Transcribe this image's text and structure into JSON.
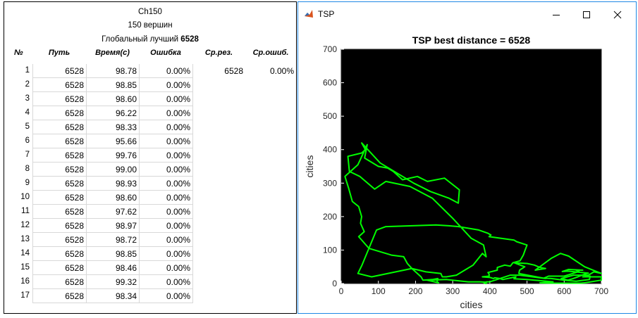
{
  "table_window": {
    "header_lines": [
      "Ch150",
      "150 вершин"
    ],
    "best_label": "Глобальный лучший",
    "best_value": "6528",
    "columns": [
      "№",
      "Путь",
      "Время(с)",
      "Ошибка",
      "Ср.рез.",
      "Ср.ошиб."
    ],
    "rows": [
      {
        "n": "1",
        "path": "6528",
        "time": "98.78",
        "err": "0.00%",
        "avg": "6528",
        "avgerr": "0.00%"
      },
      {
        "n": "2",
        "path": "6528",
        "time": "98.85",
        "err": "0.00%",
        "avg": "",
        "avgerr": ""
      },
      {
        "n": "3",
        "path": "6528",
        "time": "98.60",
        "err": "0.00%",
        "avg": "",
        "avgerr": ""
      },
      {
        "n": "4",
        "path": "6528",
        "time": "96.22",
        "err": "0.00%",
        "avg": "",
        "avgerr": ""
      },
      {
        "n": "5",
        "path": "6528",
        "time": "98.33",
        "err": "0.00%",
        "avg": "",
        "avgerr": ""
      },
      {
        "n": "6",
        "path": "6528",
        "time": "95.66",
        "err": "0.00%",
        "avg": "",
        "avgerr": ""
      },
      {
        "n": "7",
        "path": "6528",
        "time": "99.76",
        "err": "0.00%",
        "avg": "",
        "avgerr": ""
      },
      {
        "n": "8",
        "path": "6528",
        "time": "99.00",
        "err": "0.00%",
        "avg": "",
        "avgerr": ""
      },
      {
        "n": "9",
        "path": "6528",
        "time": "98.93",
        "err": "0.00%",
        "avg": "",
        "avgerr": ""
      },
      {
        "n": "10",
        "path": "6528",
        "time": "98.60",
        "err": "0.00%",
        "avg": "",
        "avgerr": ""
      },
      {
        "n": "11",
        "path": "6528",
        "time": "97.62",
        "err": "0.00%",
        "avg": "",
        "avgerr": ""
      },
      {
        "n": "12",
        "path": "6528",
        "time": "98.97",
        "err": "0.00%",
        "avg": "",
        "avgerr": ""
      },
      {
        "n": "13",
        "path": "6528",
        "time": "98.72",
        "err": "0.00%",
        "avg": "",
        "avgerr": ""
      },
      {
        "n": "14",
        "path": "6528",
        "time": "98.85",
        "err": "0.00%",
        "avg": "",
        "avgerr": ""
      },
      {
        "n": "15",
        "path": "6528",
        "time": "98.46",
        "err": "0.00%",
        "avg": "",
        "avgerr": ""
      },
      {
        "n": "16",
        "path": "6528",
        "time": "99.32",
        "err": "0.00%",
        "avg": "",
        "avgerr": ""
      },
      {
        "n": "17",
        "path": "6528",
        "time": "98.34",
        "err": "0.00%",
        "avg": "",
        "avgerr": ""
      }
    ]
  },
  "tsp_window": {
    "title": "TSP",
    "minimize_icon": "minimize-icon",
    "maximize_icon": "maximize-icon",
    "close_icon": "close-icon",
    "app_icon": "matlab-icon"
  },
  "chart_data": {
    "type": "line",
    "title": "TSP best distance = 6528",
    "xlabel": "cities",
    "ylabel": "cities",
    "xlim": [
      0,
      700
    ],
    "ylim": [
      0,
      700
    ],
    "xticks": [
      "0",
      "100",
      "200",
      "300",
      "400",
      "500",
      "600",
      "700"
    ],
    "yticks": [
      "0",
      "100",
      "200",
      "300",
      "400",
      "500",
      "600",
      "700"
    ],
    "grid": false,
    "background": "#000000",
    "line_color": "#00ff00",
    "series": [
      {
        "x": [
          56,
          45,
          82,
          190,
          228,
          268,
          272,
          283,
          310,
          355,
          380,
          390,
          383,
          350,
          300,
          245,
          185,
          120,
          90,
          50,
          22,
          18,
          55,
          65,
          55,
          105,
          195,
          240,
          290,
          315,
          318,
          278,
          232,
          205,
          165,
          140,
          125,
          100,
          63,
          70,
          45,
          10,
          20,
          30,
          47,
          55,
          52,
          62,
          47,
          75,
          135,
          168,
          178,
          190,
          215,
          220,
          245,
          260,
          258,
          262,
          231,
          283,
          342,
          374,
          390,
          384,
          390,
          390,
          400,
          455,
          480,
          550,
          525,
          478,
          480,
          494,
          465,
          500,
          520,
          535,
          550,
          522,
          565,
          590,
          612,
          655,
          700,
          680,
          665,
          625,
          592,
          610,
          622,
          637,
          660,
          665,
          610,
          595,
          612,
          650,
          632,
          640,
          600,
          558,
          545,
          565,
          600,
          632,
          668,
          670,
          650,
          700,
          700,
          655,
          645,
          642,
          620,
          578,
          535,
          545,
          570,
          520,
          500,
          465,
          470,
          435,
          427,
          413,
          410,
          401,
          380,
          398,
          398,
          395,
          420,
          420,
          440,
          455,
          462,
          481,
          490,
          495,
          500,
          472,
          465,
          398,
          403,
          395,
          370,
          316,
          285,
          255,
          120,
          95
        ],
        "y": [
          55,
          30,
          20,
          45,
          35,
          30,
          20,
          20,
          25,
          55,
          90,
          80,
          115,
          135,
          195,
          255,
          290,
          305,
          282,
          320,
          335,
          380,
          390,
          400,
          420,
          360,
          300,
          275,
          255,
          240,
          280,
          315,
          305,
          320,
          310,
          335,
          345,
          350,
          375,
          415,
          355,
          320,
          285,
          245,
          230,
          200,
          180,
          155,
          140,
          105,
          85,
          80,
          60,
          45,
          20,
          10,
          12,
          15,
          5,
          2,
          10,
          12,
          5,
          5,
          4,
          2,
          0,
          5,
          5,
          25,
          25,
          15,
          20,
          30,
          40,
          50,
          62,
          60,
          55,
          48,
          45,
          40,
          75,
          90,
          82,
          50,
          30,
          35,
          25,
          25,
          15,
          10,
          14,
          20,
          30,
          31,
          37,
          36,
          42,
          40,
          40,
          36,
          22,
          22,
          16,
          15,
          10,
          7,
          12,
          22,
          20,
          20,
          10,
          2,
          1,
          1,
          1,
          1,
          2,
          3,
          5,
          10,
          12,
          14,
          20,
          12,
          15,
          17,
          15,
          18,
          20,
          22,
          28,
          33,
          40,
          48,
          55,
          52,
          62,
          68,
          85,
          100,
          115,
          125,
          130,
          140,
          145,
          150,
          160,
          170,
          173,
          175,
          170,
          160
        ]
      }
    ]
  }
}
